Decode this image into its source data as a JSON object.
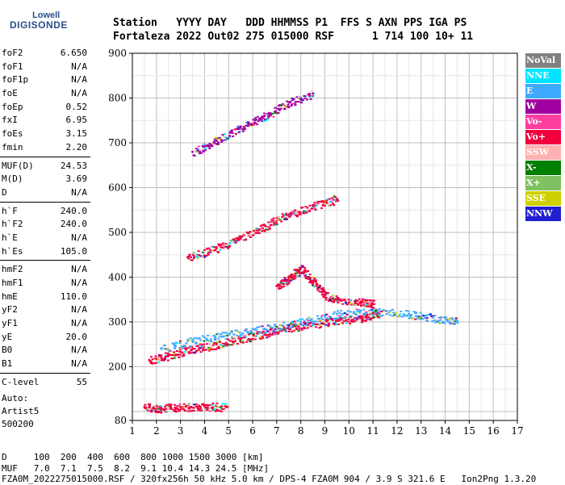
{
  "logo": {
    "line1": "Lowell",
    "line2": "DIGISONDE"
  },
  "header": {
    "line1": "Station   YYYY DAY   DDD HHMMSS P1  FFS S AXN PPS IGA PS",
    "line2": "Fortaleza 2022 Out02 275 015000 RSF      1 714 100 10+ 11"
  },
  "params": [
    [
      {
        "k": "foF2",
        "v": "6.650"
      },
      {
        "k": "foF1",
        "v": "N/A"
      },
      {
        "k": "foF1p",
        "v": "N/A"
      },
      {
        "k": "foE",
        "v": "N/A"
      },
      {
        "k": "foEp",
        "v": "0.52"
      },
      {
        "k": "fxI",
        "v": "6.95"
      },
      {
        "k": "foEs",
        "v": "3.15"
      },
      {
        "k": "fmin",
        "v": "2.20"
      }
    ],
    [
      {
        "k": "MUF(D)",
        "v": "24.53"
      },
      {
        "k": "M(D)",
        "v": "3.69"
      },
      {
        "k": "D",
        "v": "N/A"
      }
    ],
    [
      {
        "k": "h`F",
        "v": "240.0"
      },
      {
        "k": "h`F2",
        "v": "240.0"
      },
      {
        "k": "h`E",
        "v": "N/A"
      },
      {
        "k": "h`Es",
        "v": "105.0"
      }
    ],
    [
      {
        "k": "hmF2",
        "v": "N/A"
      },
      {
        "k": "hmF1",
        "v": "N/A"
      },
      {
        "k": "hmE",
        "v": "110.0"
      },
      {
        "k": "yF2",
        "v": "N/A"
      },
      {
        "k": "yF1",
        "v": "N/A"
      },
      {
        "k": "yE",
        "v": "20.0"
      },
      {
        "k": "B0",
        "v": "N/A"
      },
      {
        "k": "B1",
        "v": "N/A"
      }
    ],
    [
      {
        "k": "C-level",
        "v": "55"
      }
    ]
  ],
  "auto": {
    "line1": "Auto:",
    "line2": "Artist5",
    "line3": "500200"
  },
  "footer": {
    "line1": "D     100  200  400  600  800 1000 1500 3000 [km]",
    "line2": "MUF   7.0  7.1  7.5  8.2  9.1 10.4 14.3 24.5 [MHz]",
    "line3": "FZA0M_2022275015000.RSF / 320fx256h 50 kHz 5.0 km / DPS-4 FZA0M 904 / 3.9 S 321.6 E   Ion2Png 1.3.20"
  },
  "legend": [
    {
      "label": "NoVal",
      "color": "#808080"
    },
    {
      "label": "NNE",
      "color": "#00e5ff"
    },
    {
      "label": "E",
      "color": "#3fa9ff"
    },
    {
      "label": "W",
      "color": "#a000a0"
    },
    {
      "label": "Vo-",
      "color": "#ff3fa0"
    },
    {
      "label": "Vo+",
      "color": "#f0003c"
    },
    {
      "label": "SSW",
      "color": "#ffb0b0"
    },
    {
      "label": "X-",
      "color": "#008000"
    },
    {
      "label": "X+",
      "color": "#7fc060"
    },
    {
      "label": "SSE",
      "color": "#d0d000"
    },
    {
      "label": "NNW",
      "color": "#2020d0"
    }
  ],
  "chart_data": {
    "type": "scatter",
    "xlim": [
      1,
      17
    ],
    "ylim": [
      80,
      900
    ],
    "x_ticks": [
      1,
      2,
      3,
      4,
      5,
      6,
      7,
      8,
      9,
      10,
      11,
      12,
      13,
      14,
      15,
      16,
      17
    ],
    "y_ticks": [
      80,
      200,
      300,
      400,
      500,
      600,
      700,
      800,
      900
    ],
    "grid": true,
    "legend_position": "right",
    "traces": [
      {
        "name": "Es",
        "color": "Vo+",
        "points": [
          [
            1.5,
            110
          ],
          [
            2.2,
            108
          ],
          [
            3.0,
            110
          ],
          [
            4.0,
            112
          ],
          [
            4.9,
            110
          ]
        ]
      },
      {
        "name": "F-1hop-O",
        "color": "Vo+",
        "points": [
          [
            1.7,
            215
          ],
          [
            2.5,
            225
          ],
          [
            3.5,
            240
          ],
          [
            4.5,
            250
          ],
          [
            5.5,
            262
          ],
          [
            6.5,
            275
          ],
          [
            7.5,
            288
          ],
          [
            8.5,
            296
          ],
          [
            9.5,
            302
          ],
          [
            10.5,
            310
          ],
          [
            11.2,
            320
          ]
        ]
      },
      {
        "name": "F-1hop-X",
        "color": "E",
        "points": [
          [
            2.2,
            240
          ],
          [
            3.5,
            258
          ],
          [
            5.0,
            272
          ],
          [
            6.5,
            285
          ],
          [
            8.0,
            300
          ],
          [
            9.5,
            318
          ],
          [
            11.0,
            325
          ],
          [
            12.5,
            318
          ],
          [
            13.5,
            310
          ],
          [
            14.5,
            302
          ]
        ]
      },
      {
        "name": "F-2hop",
        "color": "Vo+",
        "points": [
          [
            3.3,
            445
          ],
          [
            4.5,
            465
          ],
          [
            5.5,
            490
          ],
          [
            6.5,
            515
          ],
          [
            7.5,
            540
          ],
          [
            8.5,
            560
          ],
          [
            9.5,
            575
          ]
        ]
      },
      {
        "name": "F-3hop",
        "color": "W",
        "points": [
          [
            3.5,
            680
          ],
          [
            4.5,
            705
          ],
          [
            5.5,
            735
          ],
          [
            6.5,
            760
          ],
          [
            7.5,
            790
          ],
          [
            8.5,
            810
          ]
        ]
      },
      {
        "name": "spread-F",
        "color": "Vo+",
        "points": [
          [
            7.0,
            380
          ],
          [
            7.5,
            400
          ],
          [
            8.0,
            420
          ],
          [
            8.5,
            390
          ],
          [
            9.0,
            360
          ],
          [
            9.5,
            350
          ],
          [
            10.5,
            345
          ],
          [
            11.0,
            340
          ]
        ]
      }
    ]
  }
}
